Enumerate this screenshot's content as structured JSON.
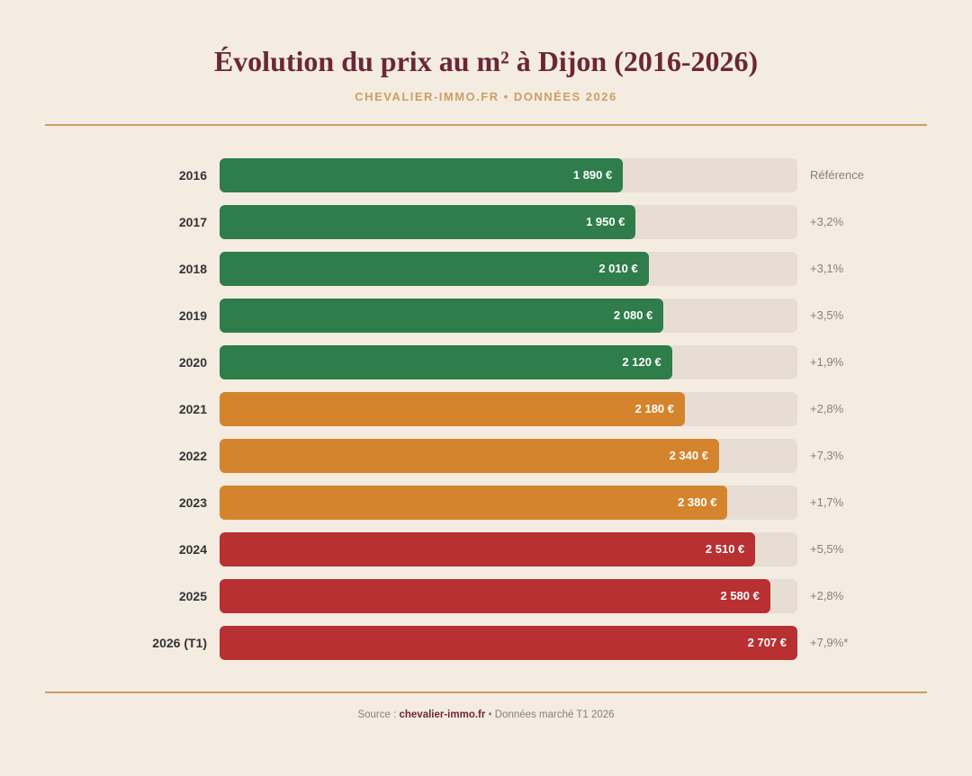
{
  "chart_data": {
    "type": "bar",
    "orientation": "horizontal",
    "title": "Évolution du prix au m² à Dijon (2016-2026)",
    "subtitle": "CHEVALIER-IMMO.FR • DONNÉES 2026",
    "categories": [
      "2016",
      "2017",
      "2018",
      "2019",
      "2020",
      "2021",
      "2022",
      "2023",
      "2024",
      "2025",
      "2026 (T1)"
    ],
    "values": [
      1890,
      1950,
      2010,
      2080,
      2120,
      2180,
      2340,
      2380,
      2510,
      2580,
      2707
    ],
    "value_labels": [
      "1 890 €",
      "1 950 €",
      "2 010 €",
      "2 080 €",
      "2 120 €",
      "2 180 €",
      "2 340 €",
      "2 380 €",
      "2 510 €",
      "2 580 €",
      "2 707 €"
    ],
    "changes": [
      "Référence",
      "+3,2%",
      "+3,1%",
      "+3,5%",
      "+1,9%",
      "+2,8%",
      "+7,3%",
      "+1,7%",
      "+5,5%",
      "+2,8%",
      "+7,9%*"
    ],
    "colors": [
      "#2e7d4a",
      "#2e7d4a",
      "#2e7d4a",
      "#2e7d4a",
      "#2e7d4a",
      "#d4842c",
      "#d4842c",
      "#d4842c",
      "#b83032",
      "#b83032",
      "#b83032"
    ],
    "xlim": [
      0,
      2707
    ],
    "grid": false,
    "track_color": "#e8ddd2"
  },
  "footer": {
    "prefix": "Source :",
    "site": "chevalier-immo.fr",
    "suffix": "• Données marché T1 2026"
  }
}
